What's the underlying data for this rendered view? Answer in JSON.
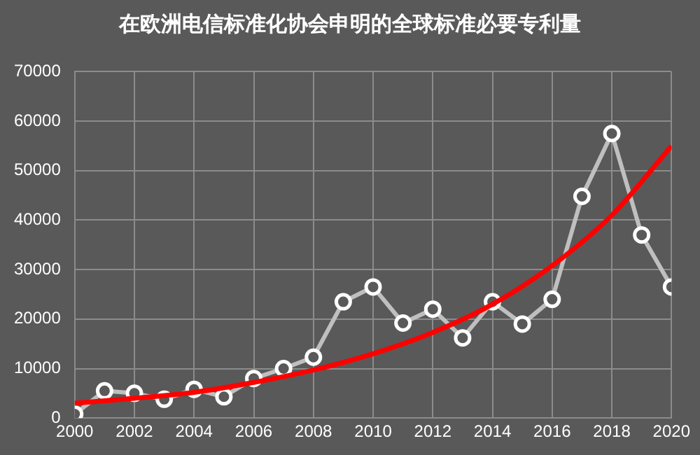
{
  "chart_data": {
    "type": "line",
    "title": "在欧洲电信标准化协会申明的全球标准必要专利量",
    "x": [
      2000,
      2001,
      2002,
      2003,
      2004,
      2005,
      2006,
      2007,
      2008,
      2009,
      2010,
      2011,
      2012,
      2013,
      2014,
      2015,
      2016,
      2017,
      2018,
      2019,
      2020
    ],
    "series": [
      {
        "color": "#bfbfbf",
        "marker": "circle",
        "values": [
          800,
          5500,
          5000,
          3800,
          5800,
          4300,
          8000,
          10000,
          12300,
          23500,
          26500,
          19200,
          22000,
          16200,
          23500,
          19000,
          24000,
          44800,
          57500,
          37000,
          26500
        ]
      },
      {
        "type": "line",
        "color": "#ff0000",
        "marker": "none",
        "x": [
          2000,
          2002,
          2004,
          2006,
          2008,
          2010,
          2012,
          2014,
          2016,
          2018,
          2020
        ],
        "values": [
          3000,
          4000,
          5200,
          7200,
          9700,
          13000,
          17300,
          23000,
          30800,
          41000,
          55000
        ]
      }
    ],
    "xlim": [
      2000,
      2020
    ],
    "xticks": [
      2000,
      2002,
      2004,
      2006,
      2008,
      2010,
      2012,
      2014,
      2016,
      2018,
      2020
    ],
    "ylim": [
      0,
      70000
    ],
    "yticks": [
      0,
      10000,
      20000,
      30000,
      40000,
      50000,
      60000,
      70000
    ],
    "grid": true,
    "legend": false
  }
}
